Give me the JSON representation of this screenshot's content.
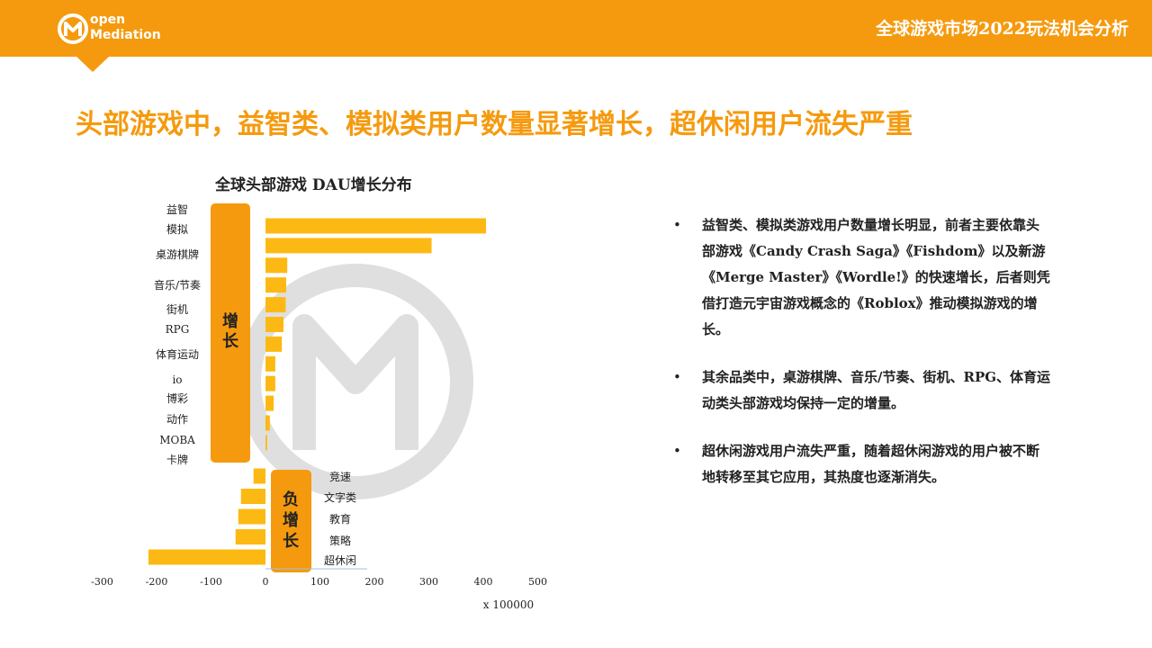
{
  "header": {
    "logo_line1": "open",
    "logo_line2": "Mediation",
    "title": "全球游戏市场2022玩法机会分析"
  },
  "headline": "头部游戏中，益智类、模拟类用户数量显著增长，超休闲用户流失严重",
  "chart_data": {
    "type": "bar",
    "orientation": "horizontal",
    "title": "全球头部游戏 DAU增长分布",
    "xlabel": "x 100000",
    "xlim": [
      -300,
      500
    ],
    "xticks": [
      -300,
      -200,
      -100,
      0,
      100,
      200,
      300,
      400,
      500
    ],
    "categories": [
      "益智",
      "模拟",
      "桌游棋牌",
      "音乐/节奏",
      "街机",
      "RPG",
      "体育运动",
      "io",
      "博彩",
      "动作",
      "MOBA",
      "卡牌",
      "竞速",
      "文字类",
      "教育",
      "策略",
      "超休闲"
    ],
    "values": [
      405,
      305,
      40,
      38,
      37,
      33,
      30,
      18,
      18,
      15,
      8,
      3,
      -22,
      -45,
      -50,
      -55,
      -215
    ],
    "groups": {
      "positive_label": "增长",
      "negative_label": "负增长"
    },
    "bar_color": "#fdb913",
    "group_color": "#f59a0e"
  },
  "bullets": [
    "益智类、模拟类游戏用户数量增长明显，前者主要依靠头部游戏《Candy Crash Saga》《Fishdom》以及新游《Merge Master》《Wordle!》的快速增长，后者则凭借打造元宇宙游戏概念的《Roblox》推动模拟游戏的增长。",
    "其余品类中，桌游棋牌、音乐/节奏、街机、RPG、体育运动类头部游戏均保持一定的增量。",
    "超休闲游戏用户流失严重，随着超休闲游戏的用户被不断地转移至其它应用，其热度也逐渐消失。"
  ],
  "bullet_marker": "•",
  "colors": {
    "accent": "#f59a0e",
    "watermark": "#d9d9d9"
  }
}
